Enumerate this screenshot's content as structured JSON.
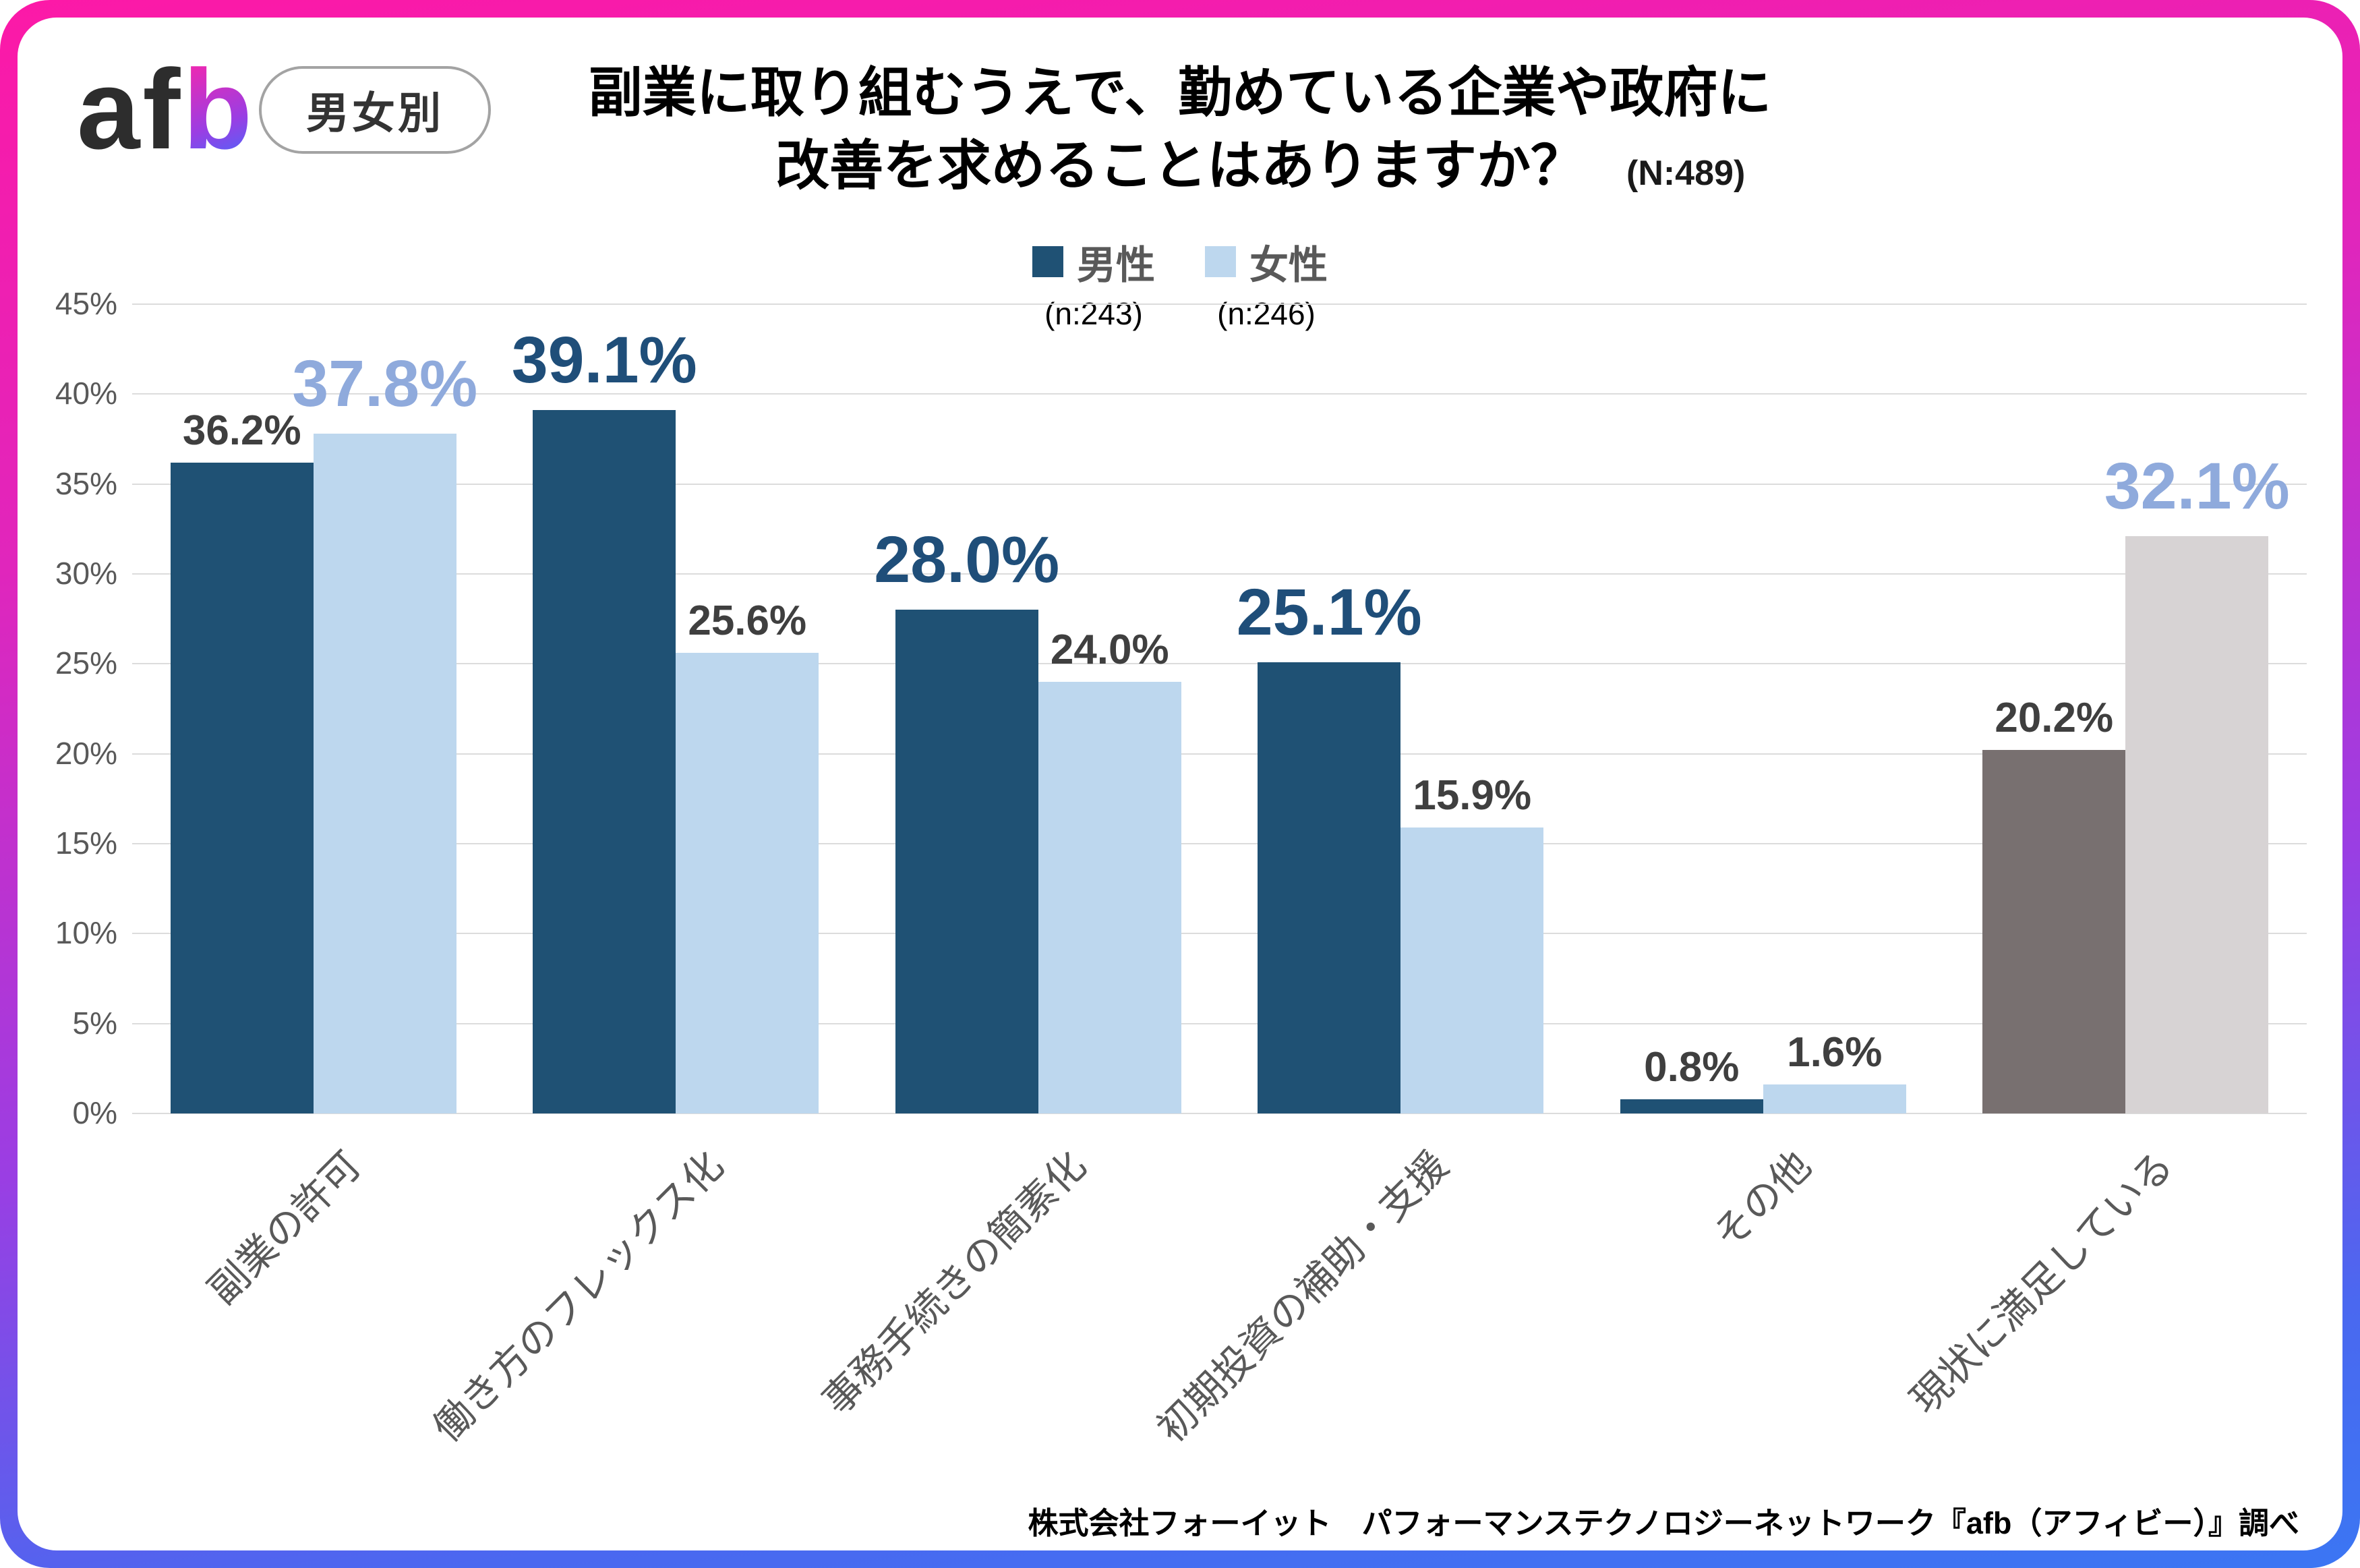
{
  "brand": {
    "logo_dark": "af",
    "logo_gradient": "b",
    "badge_label": "男女別"
  },
  "title": {
    "line1": "副業に取り組むうえで、勤めている企業や政府に",
    "line2": "改善を求めることはありますか？",
    "sample_size": "(N:489)"
  },
  "legend": [
    {
      "label": "男性",
      "n_label": "(n:243)",
      "color": "#1F5174"
    },
    {
      "label": "女性",
      "n_label": "(n:246)",
      "color": "#BDD7EE"
    }
  ],
  "footer": {
    "source": "株式会社フォーイット　パフォーマンステクノロジーネットワーク『afb（アフィビー）』調べ"
  },
  "chart_data": {
    "type": "bar",
    "title": "副業に取り組むうえで、勤めている企業や政府に改善を求めることはありますか？",
    "n_total": 489,
    "categories": [
      "副業の許可",
      "働き方のフレックス化",
      "事務手続きの簡素化",
      "初期投資の補助・支援",
      "その他",
      "現状に満足している"
    ],
    "series": [
      {
        "name": "男性",
        "n": 243,
        "values": [
          36.2,
          39.1,
          28.0,
          25.1,
          0.8,
          20.2
        ]
      },
      {
        "name": "女性",
        "n": 246,
        "values": [
          37.8,
          25.6,
          24.0,
          15.9,
          1.6,
          32.1
        ]
      }
    ],
    "ylim": [
      0,
      45
    ],
    "ytick_step": 5,
    "yticks": [
      "0%",
      "5%",
      "10%",
      "15%",
      "20%",
      "25%",
      "30%",
      "35%",
      "40%",
      "45%"
    ],
    "grid": true,
    "legend_position": "top",
    "value_label_suffix": "%",
    "colors": {
      "male": "#1F5174",
      "female": "#BDD7EE",
      "last_group_male": "#787070",
      "last_group_female": "#D7D3D4",
      "emphasis_label_male": "#1F4E79",
      "emphasis_label_female": "#8FAADC",
      "value_label": "#3F3F3F",
      "axis_label": "#595959",
      "gridline": "#DCDCDC"
    }
  }
}
